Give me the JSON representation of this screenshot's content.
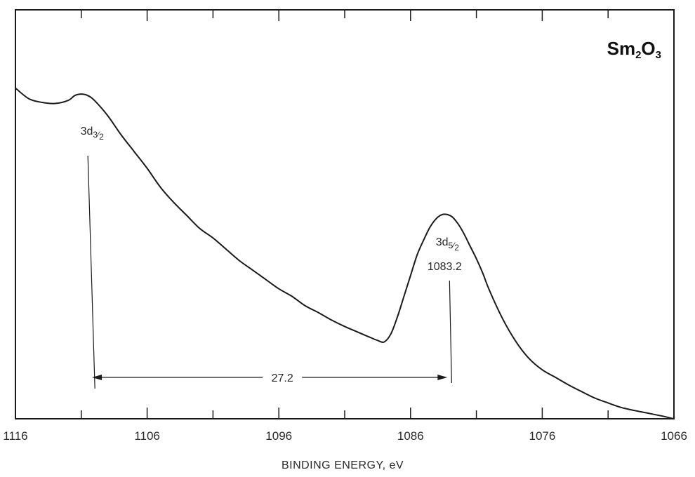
{
  "chart_data": {
    "type": "line",
    "title": {
      "base1": "Sm",
      "sub1": "2",
      "base2": "O",
      "sub2": "3"
    },
    "xlabel": "BINDING ENERGY, eV",
    "ylabel": "",
    "xlim": [
      1116,
      1066
    ],
    "ylim": [
      0,
      100
    ],
    "x_reversed": true,
    "x_ticks": [
      1116,
      1106,
      1096,
      1086,
      1076,
      1066
    ],
    "x_tick_labels": [
      "1116",
      "1106",
      "1096",
      "1086",
      "1076",
      "1066"
    ],
    "x_minor_ticks": [
      1111,
      1101,
      1091,
      1081,
      1071
    ],
    "grid": false,
    "series": [
      {
        "x": [
          1116,
          1115,
          1114,
          1113,
          1112,
          1111.5,
          1111,
          1110.5,
          1110,
          1109,
          1108,
          1107,
          1106,
          1105,
          1104,
          1103,
          1102,
          1101,
          1100,
          1099,
          1098,
          1097,
          1096,
          1095,
          1094,
          1093,
          1092,
          1091,
          1090,
          1089,
          1088.5,
          1088,
          1087.5,
          1087,
          1086.5,
          1086,
          1085.5,
          1085,
          1084.5,
          1084,
          1083.6,
          1083.2,
          1082.8,
          1082.4,
          1082,
          1081.5,
          1081,
          1080.5,
          1080,
          1079,
          1078,
          1077,
          1076,
          1075,
          1074,
          1073,
          1072,
          1071,
          1070,
          1069,
          1068,
          1067,
          1066
        ],
        "y": [
          87.8,
          85.0,
          84.0,
          83.7,
          84.5,
          85.8,
          86.2,
          85.8,
          84.5,
          80.5,
          75.5,
          71.0,
          66.5,
          61.5,
          57.5,
          54.0,
          50.5,
          48.0,
          45.0,
          42.0,
          39.5,
          37.0,
          34.5,
          32.5,
          30.0,
          28.2,
          26.2,
          24.5,
          23.0,
          21.5,
          20.8,
          20.4,
          22.5,
          27.0,
          32.5,
          38.0,
          43.5,
          47.5,
          51.0,
          53.3,
          54.2,
          54.2,
          53.5,
          51.8,
          49.5,
          46.0,
          42.5,
          38.5,
          34.0,
          26.5,
          20.5,
          16.0,
          13.0,
          11.0,
          9.0,
          7.2,
          5.5,
          4.2,
          3.0,
          2.2,
          1.5,
          0.8,
          0.0
        ]
      }
    ],
    "annotations": {
      "peak_3d32": {
        "label": "3d",
        "sub": "3",
        "sub2": "2",
        "x": 1110.5
      },
      "peak_3d52": {
        "label": "3d",
        "sub": "5",
        "sub2": "2",
        "value_label": "1083.2",
        "x": 1083.2
      },
      "separation": {
        "label": "27.2",
        "from": 1110.4,
        "to": 1083.2
      }
    }
  }
}
